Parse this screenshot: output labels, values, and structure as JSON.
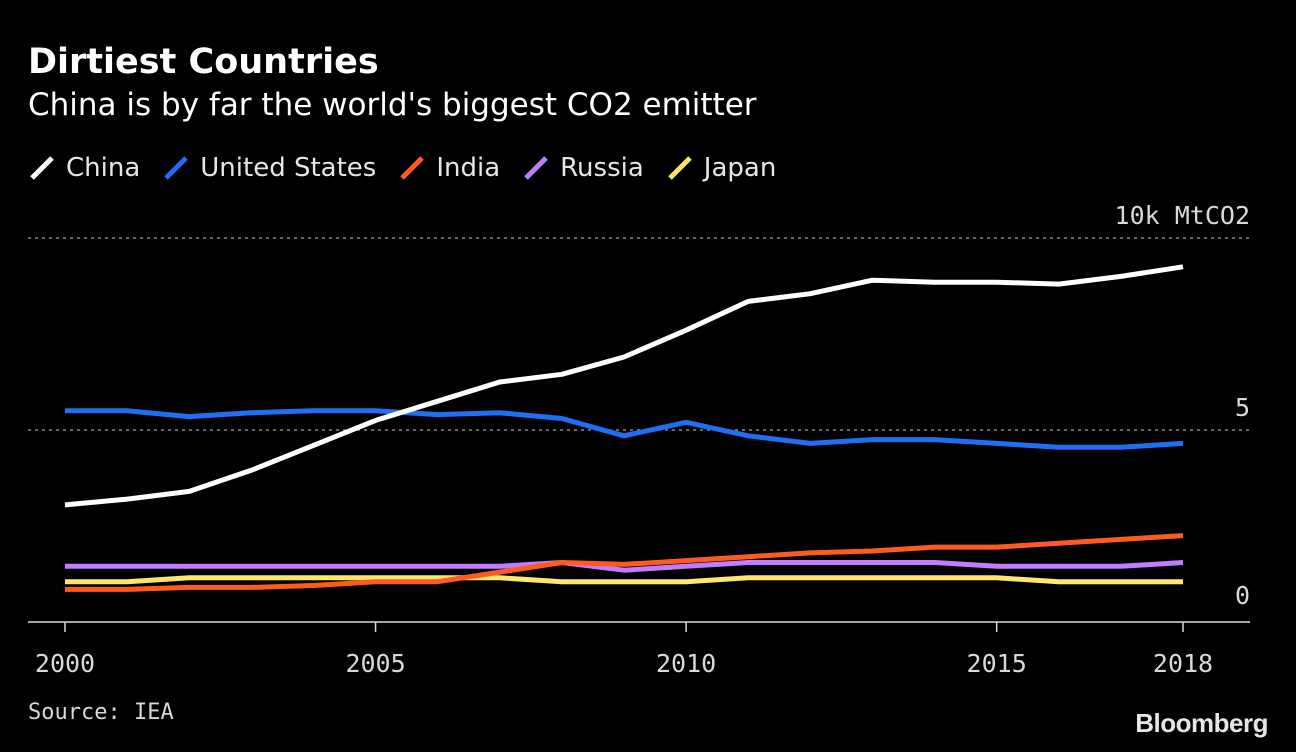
{
  "header": {
    "title": "Dirtiest Countries",
    "subtitle": "China is by far the world's biggest CO2 emitter"
  },
  "footer": {
    "source": "Source: IEA",
    "brand": "Bloomberg"
  },
  "chart_data": {
    "type": "line",
    "title": "Dirtiest Countries",
    "subtitle": "China is by far the world's biggest CO2 emitter",
    "xlabel": "",
    "ylabel": "",
    "x": [
      2000,
      2001,
      2002,
      2003,
      2004,
      2005,
      2006,
      2007,
      2008,
      2009,
      2010,
      2011,
      2012,
      2013,
      2014,
      2015,
      2016,
      2017,
      2018
    ],
    "x_ticks": [
      2000,
      2005,
      2010,
      2015,
      2018
    ],
    "x_tick_labels": [
      "2000",
      "2005",
      "2010",
      "2015",
      "2018"
    ],
    "y_ticks": [
      0,
      5,
      10
    ],
    "y_tick_labels": [
      "0",
      "5",
      "10k MtCO2"
    ],
    "ylim": [
      0,
      10
    ],
    "grid": "dotted horizontal at 5 and 10",
    "legend_position": "top-left",
    "series": [
      {
        "name": "China",
        "color": "#ffffff",
        "values": [
          3.05,
          3.2,
          3.4,
          3.95,
          4.6,
          5.25,
          5.75,
          6.25,
          6.45,
          6.9,
          7.6,
          8.35,
          8.55,
          8.9,
          8.85,
          8.85,
          8.8,
          9.0,
          9.25
        ]
      },
      {
        "name": "United States",
        "color": "#1f6ff5",
        "values": [
          5.5,
          5.5,
          5.35,
          5.45,
          5.5,
          5.5,
          5.4,
          5.45,
          5.3,
          4.85,
          5.2,
          4.85,
          4.65,
          4.75,
          4.75,
          4.65,
          4.55,
          4.55,
          4.65
        ]
      },
      {
        "name": "India",
        "color": "#ff5a1f",
        "values": [
          0.85,
          0.85,
          0.9,
          0.9,
          0.95,
          1.05,
          1.05,
          1.3,
          1.55,
          1.5,
          1.6,
          1.7,
          1.8,
          1.85,
          1.95,
          1.95,
          2.05,
          2.15,
          2.25
        ]
      },
      {
        "name": "Russia",
        "color": "#c27cff",
        "values": [
          1.45,
          1.45,
          1.45,
          1.45,
          1.45,
          1.45,
          1.45,
          1.45,
          1.55,
          1.35,
          1.45,
          1.55,
          1.55,
          1.55,
          1.55,
          1.45,
          1.45,
          1.45,
          1.55
        ]
      },
      {
        "name": "Japan",
        "color": "#ffe66e",
        "values": [
          1.05,
          1.05,
          1.15,
          1.15,
          1.15,
          1.15,
          1.15,
          1.15,
          1.05,
          1.05,
          1.05,
          1.15,
          1.15,
          1.15,
          1.15,
          1.15,
          1.05,
          1.05,
          1.05
        ]
      }
    ]
  }
}
